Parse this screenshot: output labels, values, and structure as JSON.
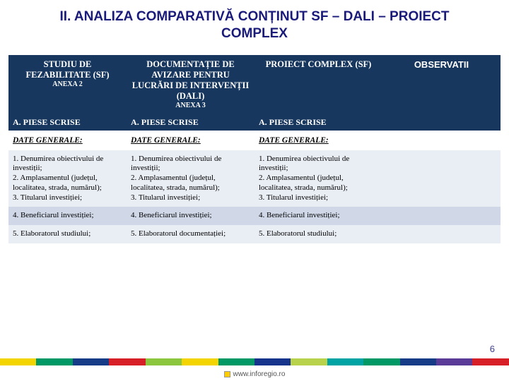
{
  "title": "II. ANALIZA COMPARATIVĂ CONȚINUT SF – DALI – PROIECT COMPLEX",
  "header": {
    "col1_main": "STUDIU DE FEZABILITATE (SF)",
    "col1_sub": "ANEXA 2",
    "col2_main": "DOCUMENTAȚIE DE AVIZARE PENTRU LUCRĂRI DE INTERVENȚII (DALI)",
    "col2_sub": "ANEXA 3",
    "col3_main": "PROIECT COMPLEX (SF)",
    "col4": "OBSERVATII"
  },
  "subheader": {
    "c1": "A. PIESE SCRISE",
    "c2": "A. PIESE SCRISE",
    "c3": "A. PIESE SCRISE"
  },
  "section": {
    "c1": "DATE GENERALE:",
    "c2": "DATE GENERALE:",
    "c3": "DATE GENERALE:"
  },
  "row1": {
    "c1": "1. Denumirea obiectivului de investiții;\n2. Amplasamentul (județul, localitatea, strada, numărul);\n3. Titularul investiției;",
    "c2": "1. Denumirea obiectivului de investiții;\n2. Amplasamentul (județul, localitatea, strada, numărul);\n3. Titularul investiției;",
    "c3": "1. Denumirea obiectivului de investiții;\n2. Amplasamentul (județul, localitatea, strada, numărul);\n3. Titularul investiției;"
  },
  "row2": {
    "c1": "4. Beneficiarul investiției;",
    "c2": "4. Beneficiarul investiției;",
    "c3": "4. Beneficiarul investiției;"
  },
  "row3": {
    "c1": "5. Elaboratorul studiului;",
    "c2": "5. Elaboratorul documentației;",
    "c3": "5. Elaboratorul studiului;"
  },
  "page_number": "6",
  "footer_text": "www.inforegio.ro",
  "stripe_colors": [
    "#f4d400",
    "#009966",
    "#173c87",
    "#d61f26",
    "#8cc63f",
    "#f4d400",
    "#009966",
    "#16348b",
    "#b9d24b",
    "#00a3a3",
    "#009966",
    "#173c87",
    "#5a3b97",
    "#d61f26"
  ],
  "col_widths": [
    "24%",
    "26%",
    "26%",
    "24%"
  ]
}
